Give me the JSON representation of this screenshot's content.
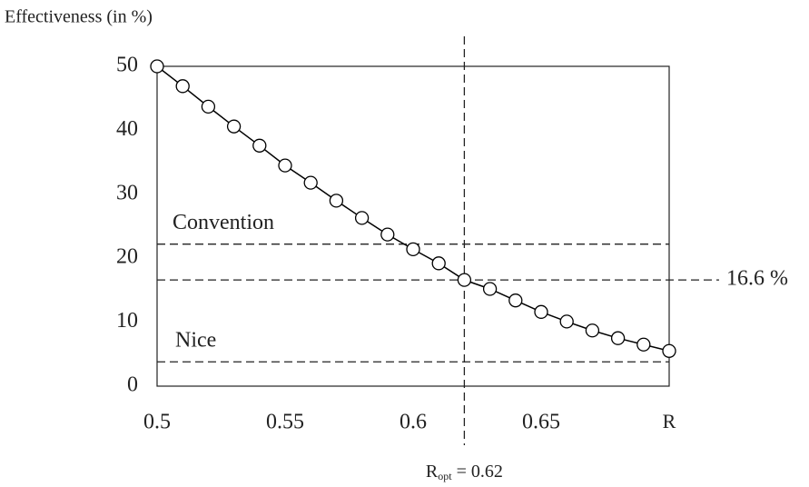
{
  "chart_data": {
    "type": "line",
    "ylabel": "Effectiveness (in %)",
    "xlabel": "R",
    "x": [
      0.5,
      0.51,
      0.52,
      0.53,
      0.54,
      0.55,
      0.56,
      0.57,
      0.58,
      0.59,
      0.6,
      0.61,
      0.62,
      0.63,
      0.64,
      0.65,
      0.66,
      0.67,
      0.68,
      0.69,
      0.7
    ],
    "series": [
      {
        "color": "#000000",
        "values": [
          50,
          46.9,
          43.7,
          40.6,
          37.6,
          34.5,
          31.8,
          29,
          26.3,
          23.7,
          21.4,
          19.2,
          16.6,
          15.2,
          13.4,
          11.6,
          10.1,
          8.7,
          7.5,
          6.5,
          5.5
        ]
      }
    ],
    "xlim": [
      0.5,
      0.7
    ],
    "ylim": [
      0,
      50
    ],
    "xticks": [
      0.5,
      0.55,
      0.6,
      0.65
    ],
    "yticks": [
      0,
      10,
      20,
      30,
      40,
      50
    ],
    "hlines": [
      {
        "value": 22.2,
        "label": "Convention"
      },
      {
        "value": 16.6,
        "label": "16.6 %"
      },
      {
        "value": 3.8,
        "label": "Nice"
      }
    ],
    "vline": {
      "value": 0.62,
      "label": {
        "main": "R",
        "sub": "opt",
        "rest": "= 0.62"
      }
    }
  }
}
